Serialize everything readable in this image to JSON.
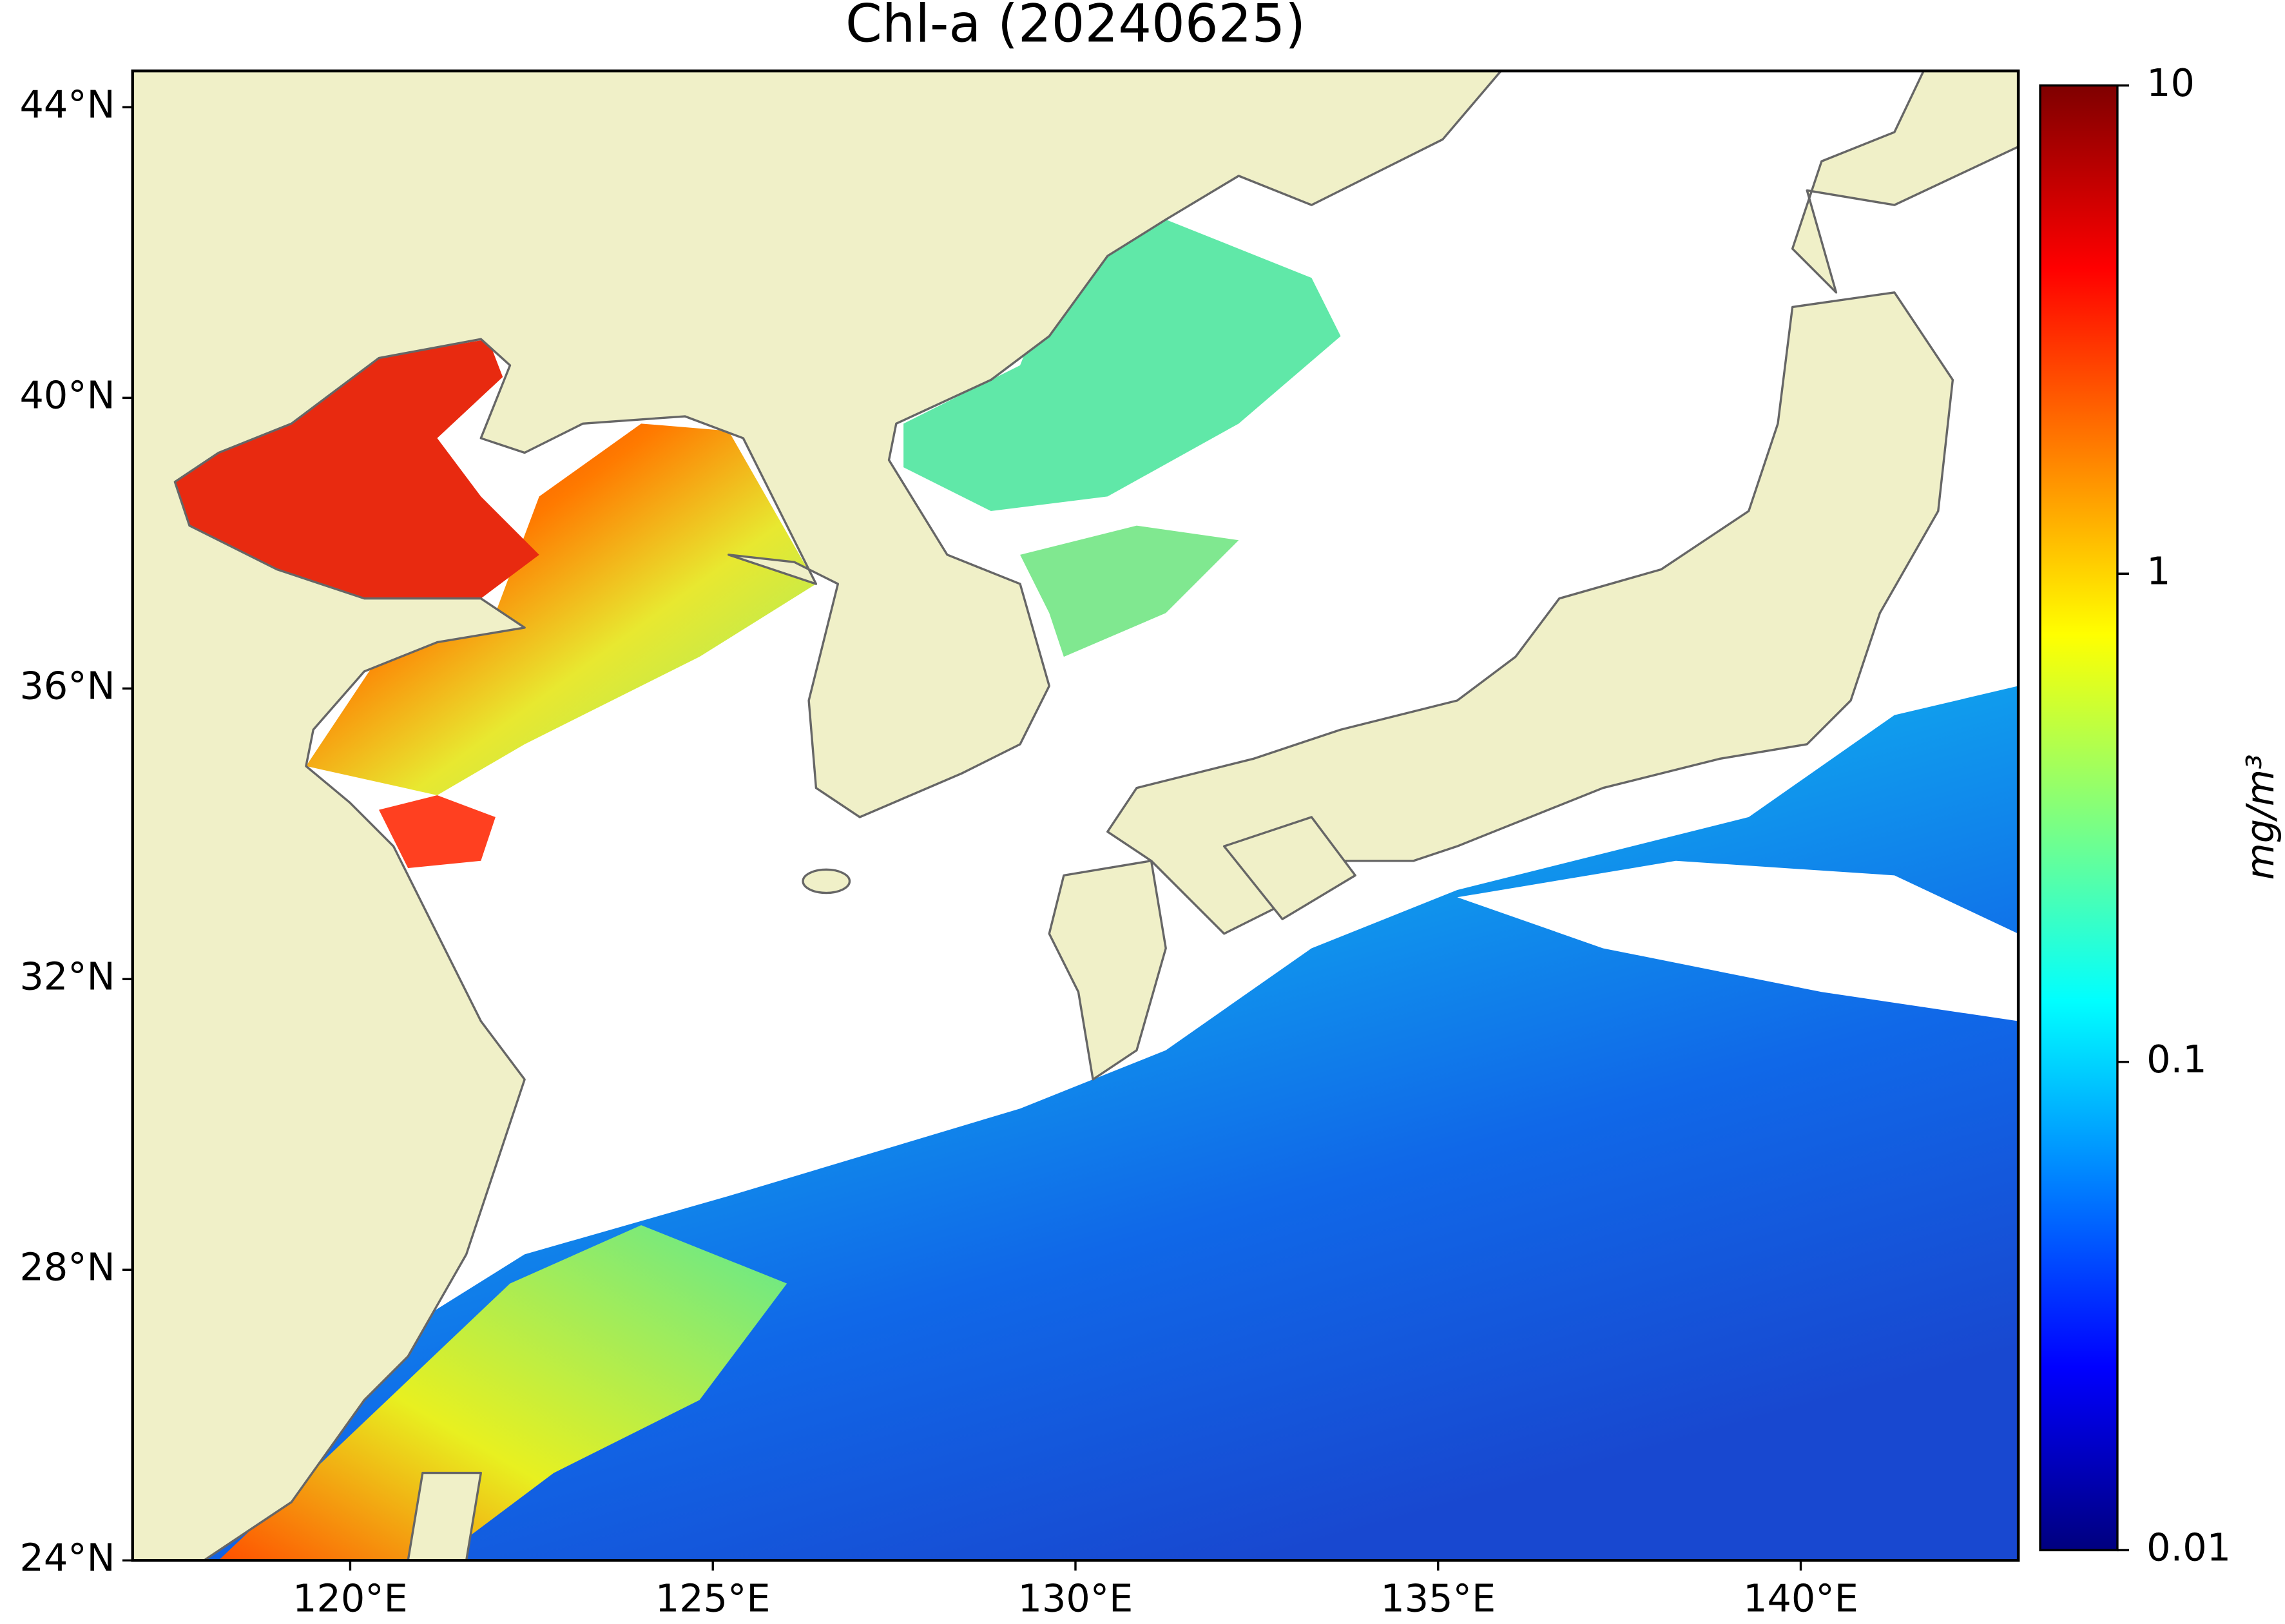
{
  "title": "Chl-a (20240625)",
  "map": {
    "xlim": [
      117,
      143
    ],
    "ylim": [
      24,
      44.5
    ],
    "land_color": "#f0f0c8",
    "xticks": [
      {
        "value": 120,
        "label": "120°E"
      },
      {
        "value": 125,
        "label": "125°E"
      },
      {
        "value": 130,
        "label": "130°E"
      },
      {
        "value": 135,
        "label": "135°E"
      },
      {
        "value": 140,
        "label": "140°E"
      }
    ],
    "yticks": [
      {
        "value": 24,
        "label": "24°N"
      },
      {
        "value": 28,
        "label": "28°N"
      },
      {
        "value": 32,
        "label": "32°N"
      },
      {
        "value": 36,
        "label": "36°N"
      },
      {
        "value": 40,
        "label": "40°N"
      },
      {
        "value": 44,
        "label": "44°N"
      }
    ]
  },
  "colorbar": {
    "label": "mg/m³",
    "scale": "log",
    "lim": [
      0.01,
      10
    ],
    "ticks": [
      0.01,
      0.1,
      1,
      10
    ],
    "colors": [
      "#00007f",
      "#0000ff",
      "#007fff",
      "#00ffff",
      "#7fff7f",
      "#ffff00",
      "#ff7f00",
      "#ff0000",
      "#7f0000"
    ]
  }
}
